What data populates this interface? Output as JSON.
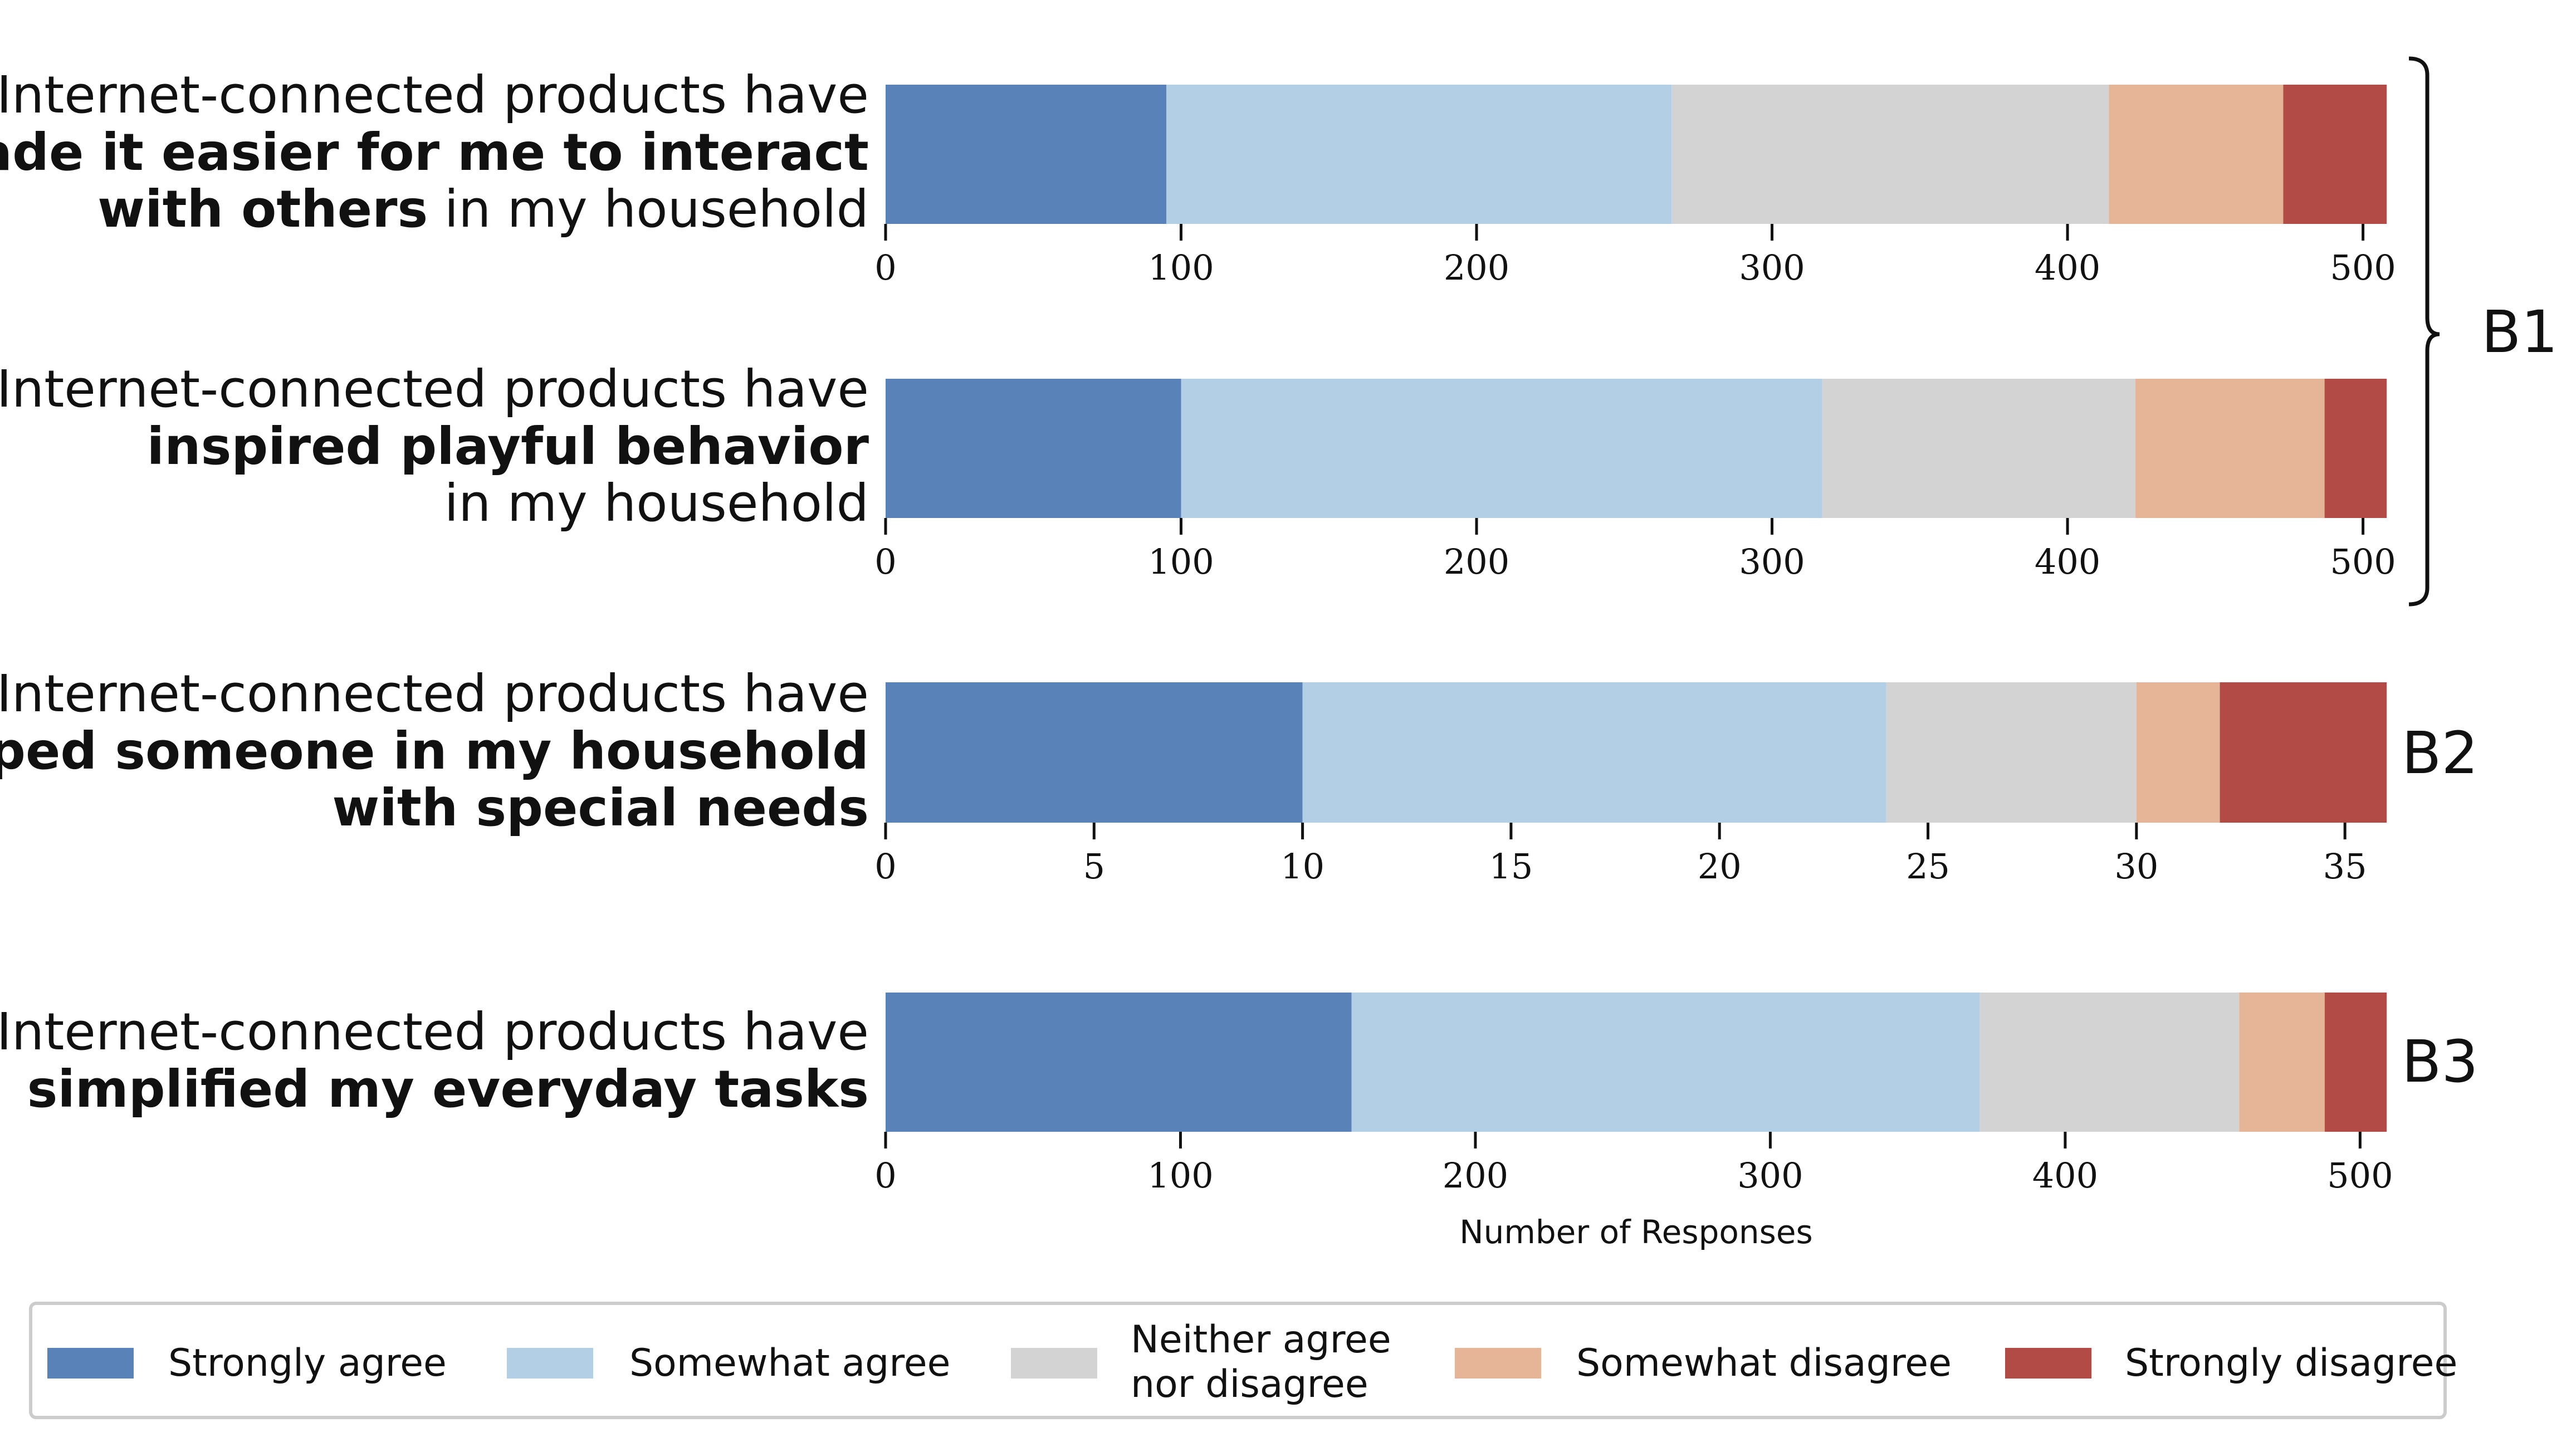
{
  "legend": {
    "items": [
      {
        "key": "strongly_agree",
        "lines": [
          "Strongly agree"
        ]
      },
      {
        "key": "somewhat_agree",
        "lines": [
          "Somewhat agree"
        ]
      },
      {
        "key": "neither",
        "lines": [
          "Neither agree",
          "nor disagree"
        ]
      },
      {
        "key": "somewhat_disagree",
        "lines": [
          "Somewhat disagree"
        ]
      },
      {
        "key": "strongly_disagree",
        "lines": [
          "Strongly disagree"
        ]
      }
    ]
  },
  "colors": {
    "strongly_agree": "#5882b8",
    "somewhat_agree": "#b3cfe5",
    "neither": "#d3d3d3",
    "somewhat_disagree": "#e6b496",
    "strongly_disagree": "#b24a46",
    "bracket": "#111111"
  },
  "groups": [
    {
      "label": "B1",
      "panels": [
        0,
        1
      ]
    },
    {
      "label": "B2",
      "panels": [
        2
      ]
    },
    {
      "label": "B3",
      "panels": [
        3
      ]
    }
  ],
  "chart_data": [
    {
      "type": "bar",
      "orientation": "horizontal",
      "stacked": true,
      "question": [
        [
          {
            "text": "Internet-connected products have",
            "bold": false
          }
        ],
        [
          {
            "text": "made it easier for me to interact",
            "bold": true
          }
        ],
        [
          {
            "text": "with others",
            "bold": true
          },
          {
            "text": " in my household",
            "bold": false
          }
        ]
      ],
      "series": [
        {
          "name": "Strongly agree",
          "key": "strongly_agree",
          "value": 95
        },
        {
          "name": "Somewhat agree",
          "key": "somewhat_agree",
          "value": 171
        },
        {
          "name": "Neither agree nor disagree",
          "key": "neither",
          "value": 148
        },
        {
          "name": "Somewhat disagree",
          "key": "somewhat_disagree",
          "value": 59
        },
        {
          "name": "Strongly disagree",
          "key": "strongly_disagree",
          "value": 35
        }
      ],
      "xlim": [
        0,
        508
      ],
      "xticks": [
        "0",
        "100",
        "200",
        "300",
        "400",
        "500"
      ],
      "xlabel": ""
    },
    {
      "type": "bar",
      "orientation": "horizontal",
      "stacked": true,
      "question": [
        [
          {
            "text": "Internet-connected products have",
            "bold": false
          }
        ],
        [
          {
            "text": "inspired playful behavior",
            "bold": true
          }
        ],
        [
          {
            "text": "in my household",
            "bold": false
          }
        ]
      ],
      "series": [
        {
          "name": "Strongly agree",
          "key": "strongly_agree",
          "value": 100
        },
        {
          "name": "Somewhat agree",
          "key": "somewhat_agree",
          "value": 217
        },
        {
          "name": "Neither agree nor disagree",
          "key": "neither",
          "value": 106
        },
        {
          "name": "Somewhat disagree",
          "key": "somewhat_disagree",
          "value": 64
        },
        {
          "name": "Strongly disagree",
          "key": "strongly_disagree",
          "value": 21
        }
      ],
      "xlim": [
        0,
        508
      ],
      "xticks": [
        "0",
        "100",
        "200",
        "300",
        "400",
        "500"
      ],
      "xlabel": ""
    },
    {
      "type": "bar",
      "orientation": "horizontal",
      "stacked": true,
      "question": [
        [
          {
            "text": "Internet-connected products have",
            "bold": false
          }
        ],
        [
          {
            "text": "helped someone in my household",
            "bold": true
          }
        ],
        [
          {
            "text": "with special needs",
            "bold": true
          }
        ]
      ],
      "series": [
        {
          "name": "Strongly agree",
          "key": "strongly_agree",
          "value": 10
        },
        {
          "name": "Somewhat agree",
          "key": "somewhat_agree",
          "value": 14
        },
        {
          "name": "Neither agree nor disagree",
          "key": "neither",
          "value": 6
        },
        {
          "name": "Somewhat disagree",
          "key": "somewhat_disagree",
          "value": 2
        },
        {
          "name": "Strongly disagree",
          "key": "strongly_disagree",
          "value": 4
        }
      ],
      "xlim": [
        0,
        36
      ],
      "xticks": [
        "0",
        "5",
        "10",
        "15",
        "20",
        "25",
        "30",
        "35"
      ],
      "xlabel": ""
    },
    {
      "type": "bar",
      "orientation": "horizontal",
      "stacked": true,
      "question": [
        [
          {
            "text": "Internet-connected products have",
            "bold": false
          }
        ],
        [
          {
            "text": "simplified my everyday tasks",
            "bold": true
          }
        ]
      ],
      "series": [
        {
          "name": "Strongly agree",
          "key": "strongly_agree",
          "value": 158
        },
        {
          "name": "Somewhat agree",
          "key": "somewhat_agree",
          "value": 213
        },
        {
          "name": "Neither agree nor disagree",
          "key": "neither",
          "value": 88
        },
        {
          "name": "Somewhat disagree",
          "key": "somewhat_disagree",
          "value": 29
        },
        {
          "name": "Strongly disagree",
          "key": "strongly_disagree",
          "value": 21
        }
      ],
      "xlim": [
        0,
        509
      ],
      "xticks": [
        "0",
        "100",
        "200",
        "300",
        "400",
        "500"
      ],
      "xlabel": "Number of Responses"
    }
  ]
}
